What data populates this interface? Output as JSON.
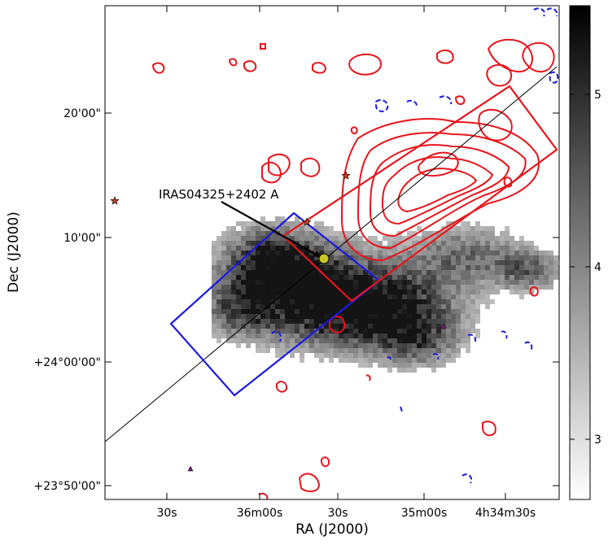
{
  "chart_data": {
    "type": "image-with-contours",
    "axes": {
      "xlabel": "RA (J2000)",
      "ylabel": "Dec (J2000)",
      "xticks": [
        "30s",
        "36m00s",
        "30s",
        "35m00s",
        "4h34m30s"
      ],
      "yticks": [
        "20'00\"",
        "10'00\"",
        "+24°00'00\"",
        "+23°50'00\""
      ]
    },
    "colorbar": {
      "ticks": [
        "5",
        "4",
        "3"
      ],
      "colormap": "grayscale"
    },
    "annotations": [
      {
        "text": "IRAS04325+2402 A"
      }
    ],
    "colors": {
      "red_contours": "#e8141b",
      "blue_contours": "#1a1ae0",
      "source_marker": "#c8c820"
    }
  }
}
